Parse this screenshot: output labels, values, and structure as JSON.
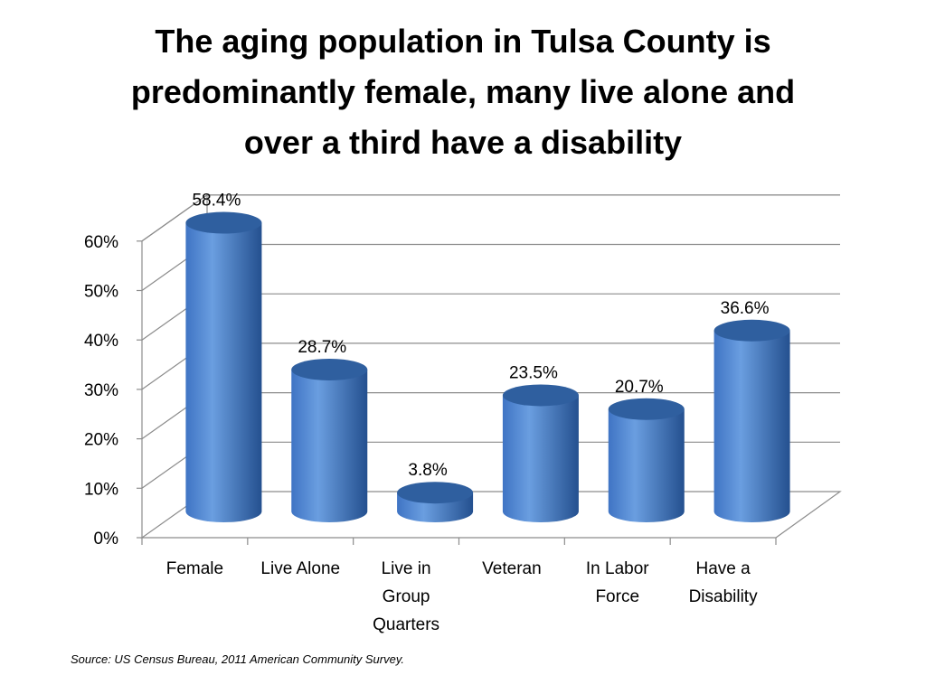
{
  "title_lines": [
    "The aging population in Tulsa County is",
    "predominantly female, many live alone and",
    "over a third have a disability"
  ],
  "source": "Source:  US Census Bureau, 2011 American Community Survey.",
  "colors": {
    "bar_light": "#6a9ee0",
    "bar_mid": "#3f74c4",
    "bar_dark": "#24508f",
    "bar_top": "#2f5f9f",
    "grid": "#8c8c8c"
  },
  "chart_data": {
    "type": "bar",
    "style": "3d-cylinder",
    "categories": [
      [
        "Female"
      ],
      [
        "Live Alone"
      ],
      [
        "Live in",
        "Group",
        "Quarters"
      ],
      [
        "Veteran"
      ],
      [
        "In Labor",
        "Force"
      ],
      [
        "Have a",
        "Disability"
      ]
    ],
    "values": [
      58.4,
      28.7,
      3.8,
      23.5,
      20.7,
      36.6
    ],
    "data_labels": [
      "58.4%",
      "28.7%",
      "3.8%",
      "23.5%",
      "20.7%",
      "36.6%"
    ],
    "y_ticks": [
      "0%",
      "10%",
      "20%",
      "30%",
      "40%",
      "50%",
      "60%"
    ],
    "ylim": [
      0,
      60
    ],
    "grid": true,
    "legend": "none"
  }
}
